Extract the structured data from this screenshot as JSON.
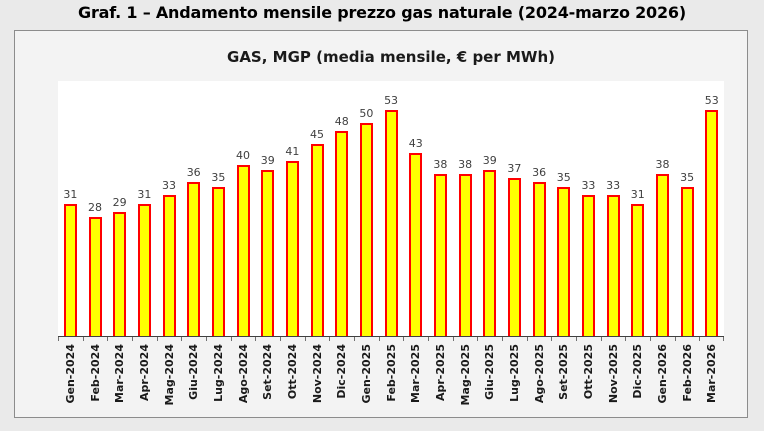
{
  "page": {
    "title": "Graf. 1 – Andamento mensile prezzo gas naturale (2024-marzo 2026)"
  },
  "chart_data": {
    "type": "bar",
    "title": "GAS, MGP (media mensile, € per MWh)",
    "categories": [
      "Gen-2024",
      "Feb-2024",
      "Mar-2024",
      "Apr-2024",
      "Mag-2024",
      "Giu-2024",
      "Lug-2024",
      "Ago-2024",
      "Set-2024",
      "Ott-2024",
      "Nov-2024",
      "Dic-2024",
      "Gen-2025",
      "Feb-2025",
      "Mar-2025",
      "Apr-2025",
      "Mag-2025",
      "Giu-2025",
      "Lug-2025",
      "Ago-2025",
      "Set-2025",
      "Ott-2025",
      "Nov-2025",
      "Dic-2025",
      "Gen-2026",
      "Feb-2026",
      "Mar-2026"
    ],
    "values": [
      31,
      28,
      29,
      31,
      33,
      36,
      35,
      40,
      39,
      41,
      45,
      48,
      50,
      53,
      43,
      38,
      38,
      39,
      37,
      36,
      35,
      33,
      33,
      31,
      38,
      35,
      53
    ],
    "ylim": [
      0,
      60
    ],
    "grid": false,
    "legend": "none",
    "value_labels_shown": true,
    "bar_fill": "#FFFF00",
    "bar_border": "#FF0000",
    "axis_color": "#404040",
    "value_label_color": "#3f3f3f"
  }
}
